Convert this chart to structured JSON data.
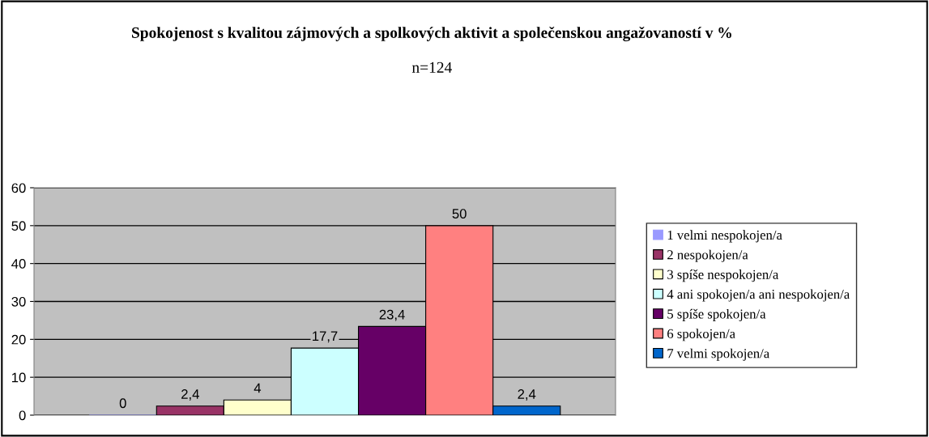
{
  "chart_data": {
    "type": "bar",
    "title": "Spokojenost s kvalitou zájmových a spolkových aktivit a společenskou angažovaností v %",
    "subtitle": "n=124",
    "categories": [
      null
    ],
    "series": [
      {
        "name": "1 velmi nespokojen/a",
        "color": "#9999ff",
        "values": [
          0
        ],
        "value_labels": [
          "0"
        ]
      },
      {
        "name": "2 nespokojen/a",
        "color": "#993366",
        "values": [
          2.4
        ],
        "value_labels": [
          "2,4"
        ]
      },
      {
        "name": "3 spíše nespokojen/a",
        "color": "#ffffcc",
        "values": [
          4
        ],
        "value_labels": [
          "4"
        ]
      },
      {
        "name": "4 ani spokojen/a ani nespokojen/a",
        "color": "#ccffff",
        "values": [
          17.7
        ],
        "value_labels": [
          "17,7"
        ]
      },
      {
        "name": "5 spíše spokojen/a",
        "color": "#660066",
        "values": [
          23.4
        ],
        "value_labels": [
          "23,4"
        ]
      },
      {
        "name": "6 spokojen/a",
        "color": "#ff8080",
        "values": [
          50
        ],
        "value_labels": [
          "50"
        ]
      },
      {
        "name": "7 velmi spokojen/a",
        "color": "#0066cc",
        "values": [
          2.4
        ],
        "value_labels": [
          "2,4"
        ]
      }
    ],
    "ylim": [
      0,
      60
    ],
    "yticks": [
      0,
      10,
      20,
      30,
      40,
      50,
      60
    ],
    "grid": "y",
    "legend": "right"
  }
}
